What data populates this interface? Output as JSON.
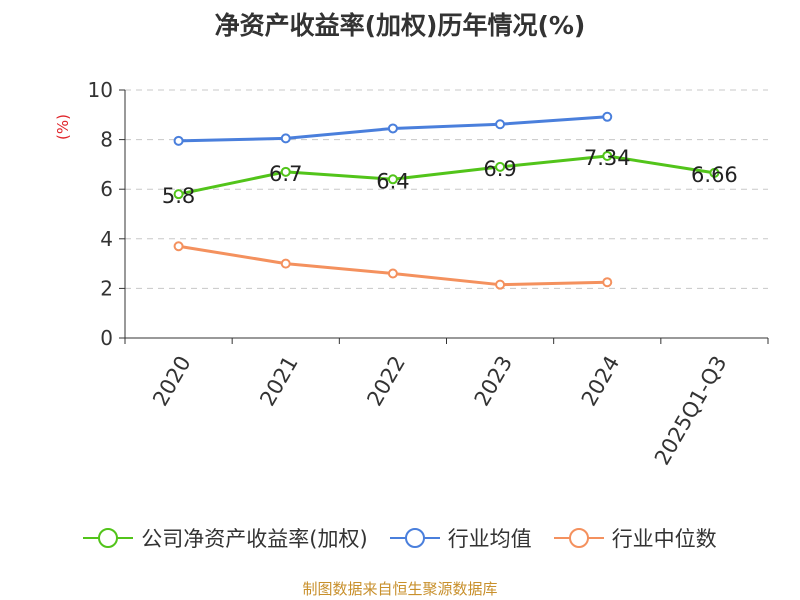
{
  "chart_data": {
    "type": "line",
    "title": "净资产收益率(加权)历年情况(%)",
    "ylabel": "(%)",
    "xlabel": "",
    "categories": [
      "2020",
      "2021",
      "2022",
      "2023",
      "2024",
      "2025Q1-Q3"
    ],
    "ylim": [
      0,
      10
    ],
    "yticks": [
      0,
      2,
      4,
      6,
      8,
      10
    ],
    "grid": true,
    "legend_position": "bottom",
    "series": [
      {
        "name": "公司净资产收益率(加权)",
        "color": "#52c41a",
        "values": [
          5.8,
          6.7,
          6.4,
          6.9,
          7.34,
          6.66
        ],
        "labels": [
          "5.8",
          "6.7",
          "6.4",
          "6.9",
          "7.34",
          "6.66"
        ]
      },
      {
        "name": "行业均值",
        "color": "#4a7fdc",
        "values": [
          7.95,
          8.05,
          8.45,
          8.62,
          8.92,
          null
        ]
      },
      {
        "name": "行业中位数",
        "color": "#f4915e",
        "values": [
          3.7,
          3.0,
          2.6,
          2.15,
          2.25,
          null
        ]
      }
    ]
  },
  "source_note": "制图数据来自恒生聚源数据库"
}
